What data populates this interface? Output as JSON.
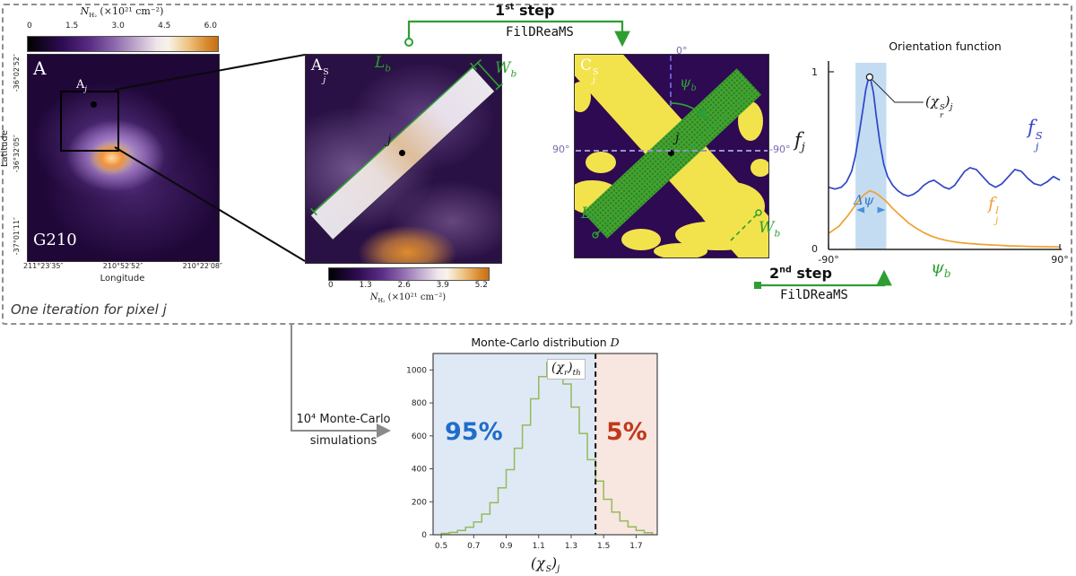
{
  "iteration": {
    "label": "One iteration for pixel j"
  },
  "steps": {
    "step1_num": "1",
    "step1_ord": "st",
    "step1_rest": " step",
    "step1_tool": "FilDReaMS",
    "step2_num": "2",
    "step2_ord": "nd",
    "step2_rest": " step",
    "step2_tool": "FilDReaMS"
  },
  "monte_carlo_note": {
    "line1": "10⁴ Monte-Carlo",
    "line2": "simulations"
  },
  "panel_map": {
    "label": "A",
    "inset_base": "A",
    "inset_sub": "j",
    "region": "G210",
    "cb_base": "N",
    "cb_sub": "H₂",
    "cb_rest": " (×10²¹ cm⁻²)",
    "colorbar_ticks": [
      "0",
      "1.5",
      "3.0",
      "4.5",
      "6.0"
    ],
    "ylabel": "Latitude",
    "y_ticks": [
      "-36°02′52″",
      "-36°32′05″",
      "-37°01′11″"
    ],
    "xlabel": "Longitude",
    "x_ticks": [
      "211°23′35″",
      "210°52′52″",
      "210°22′08″"
    ]
  },
  "panel_zoom": {
    "base": "A",
    "sub": "j",
    "sup": "S",
    "point": "j",
    "L_base": "L",
    "L_sub": "b",
    "W_base": "W",
    "W_sub": "b",
    "cb_base": "N",
    "cb_sub": "H₂",
    "cb_rest": " (×10²¹ cm⁻²)",
    "colorbar_ticks": [
      "0",
      "1.3",
      "2.6",
      "3.9",
      "5.2"
    ]
  },
  "panel_binary": {
    "base": "C",
    "sub": "j",
    "sup": "S",
    "point": "j",
    "psi_base": "ψ",
    "psi_sub": "b",
    "deg0": "0°",
    "deg90": "90°",
    "degm90": "-90°",
    "L_base": "L",
    "L_sub": "b",
    "W_base": "W",
    "W_sub": "b"
  },
  "orientation": {
    "title": "Orientation function",
    "ylabel_base": "f",
    "ylabel_sub": "j",
    "fS_base": "f",
    "fS_sub": "j",
    "fS_sup": "S",
    "fI_base": "f",
    "fI_sub": "j",
    "fI_sup": "I",
    "dpsi": "Δψ",
    "xlabel_base": "ψ",
    "xlabel_sub": "b",
    "ytick_top": "1",
    "ytick_bottom": "0",
    "xtick_left": "-90°",
    "xtick_right": "90°",
    "peak_open": "(χ",
    "peak_sup": "S",
    "peak_sub": "r",
    "peak_close": ")",
    "peak_outer": "j"
  },
  "histogram": {
    "title_main": "Monte-Carlo distribution ",
    "title_math": "D",
    "pct_left": "95%",
    "pct_right": "5%",
    "thr_open": "(χ",
    "thr_sub": "r",
    "thr_close": ")",
    "thr_outer": "th",
    "xlabel_open": "(χ",
    "xlabel_sup": "S",
    "xlabel_sub": "r",
    "xlabel_close": ")",
    "xlabel_outer": "j"
  },
  "colors": {
    "accent_green": "#2e9e33",
    "axis_purple": "#7b68ae",
    "blue_curve": "#2f45c8",
    "orange_curve": "#f0a030",
    "hist_line_green": "#93bb59",
    "blue_region": "#dfe9f6",
    "red_region": "#f8e6e0",
    "pct_blue": "#1f6dc9",
    "pct_red": "#c0391b"
  },
  "chart_data": [
    {
      "id": "orientation",
      "type": "line",
      "title": "Orientation function",
      "xlabel": "ψ_b (deg)",
      "ylabel": "f_j",
      "xlim": [
        -90,
        90
      ],
      "ylim": [
        0,
        1
      ],
      "x_ticks": [
        "-90°",
        "90°"
      ],
      "y_ticks": [
        0,
        1
      ],
      "band": {
        "x0": -69,
        "x1": -45,
        "label": "Δψ",
        "color": "#c3dcf2"
      },
      "peak": {
        "x": -58,
        "y": 0.97,
        "label": "(χ_r^S)_j"
      },
      "series": [
        {
          "name": "f_j^S",
          "color": "#2f45c8",
          "x": [
            -90,
            -85,
            -80,
            -76,
            -72,
            -69,
            -66,
            -63,
            -61,
            -59,
            -58,
            -57,
            -55,
            -53,
            -50,
            -47,
            -44,
            -40,
            -36,
            -32,
            -28,
            -24,
            -20,
            -16,
            -12,
            -8,
            -4,
            0,
            4,
            8,
            12,
            16,
            20,
            25,
            30,
            35,
            40,
            45,
            50,
            55,
            60,
            65,
            70,
            75,
            80,
            85,
            90
          ],
          "y": [
            0.35,
            0.34,
            0.35,
            0.38,
            0.44,
            0.53,
            0.66,
            0.8,
            0.9,
            0.96,
            0.97,
            0.95,
            0.88,
            0.76,
            0.6,
            0.48,
            0.41,
            0.36,
            0.33,
            0.31,
            0.3,
            0.31,
            0.33,
            0.36,
            0.38,
            0.39,
            0.37,
            0.35,
            0.34,
            0.36,
            0.4,
            0.44,
            0.46,
            0.45,
            0.41,
            0.37,
            0.35,
            0.37,
            0.41,
            0.45,
            0.44,
            0.4,
            0.37,
            0.36,
            0.38,
            0.41,
            0.39
          ]
        },
        {
          "name": "f_j^I",
          "color": "#f0a030",
          "x": [
            -90,
            -82,
            -75,
            -70,
            -66,
            -62,
            -58,
            -54,
            -50,
            -45,
            -40,
            -34,
            -28,
            -22,
            -16,
            -10,
            -4,
            2,
            10,
            20,
            30,
            40,
            50,
            60,
            70,
            80,
            90
          ],
          "y": [
            0.09,
            0.13,
            0.19,
            0.24,
            0.28,
            0.31,
            0.33,
            0.32,
            0.3,
            0.27,
            0.23,
            0.19,
            0.15,
            0.12,
            0.095,
            0.075,
            0.06,
            0.05,
            0.04,
            0.033,
            0.028,
            0.024,
            0.02,
            0.018,
            0.016,
            0.015,
            0.014
          ]
        }
      ]
    },
    {
      "id": "monte_carlo",
      "type": "histogram",
      "title": "Monte-Carlo distribution D",
      "xlabel": "(χ_r^S)_j",
      "bin_start": 0.5,
      "bin_width": 0.05,
      "counts": [
        8,
        14,
        26,
        46,
        78,
        125,
        195,
        285,
        395,
        525,
        665,
        825,
        960,
        1045,
        1005,
        915,
        775,
        615,
        455,
        325,
        215,
        138,
        84,
        48,
        26,
        12
      ],
      "xlim": [
        0.45,
        1.83
      ],
      "ylim": [
        0,
        1100
      ],
      "x_ticks": [
        "0.5",
        "0.7",
        "0.9",
        "1.1",
        "1.3",
        "1.5",
        "1.7"
      ],
      "y_ticks": [
        "0",
        "200",
        "400",
        "600",
        "800",
        "1000"
      ],
      "threshold": 1.45,
      "threshold_label": "(χ_r)_th",
      "left_pct": "95%",
      "right_pct": "5%",
      "region_left_color": "#dfe9f6",
      "region_right_color": "#f8e6e0",
      "line_color": "#93bb59"
    }
  ]
}
